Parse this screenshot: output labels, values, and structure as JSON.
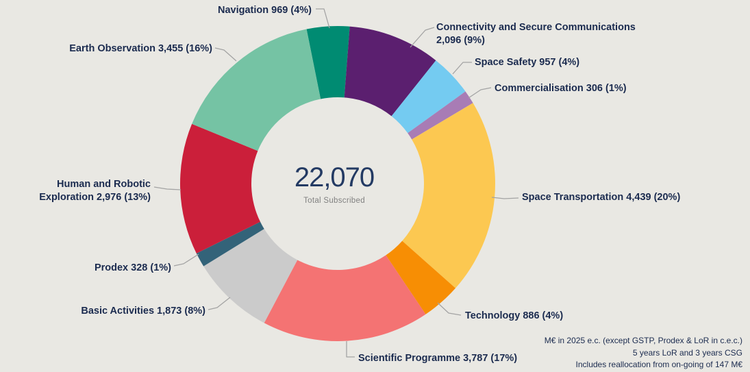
{
  "chart_data": {
    "type": "pie",
    "subtype": "donut",
    "title": "",
    "legend_position": "outside-labels",
    "start_angle_deg": -11.4,
    "total_label": "22,070",
    "center": {
      "value": "22,070",
      "caption": "Total Subscribed"
    },
    "segments": [
      {
        "name": "Navigation",
        "value": 969,
        "pct": 4,
        "color": "#008b72"
      },
      {
        "name": "Connectivity and Secure Communications",
        "value": 2096,
        "pct": 9,
        "color": "#5b1f6f"
      },
      {
        "name": "Space Safety",
        "value": 957,
        "pct": 4,
        "color": "#74cbf1"
      },
      {
        "name": "Commercialisation",
        "value": 306,
        "pct": 1,
        "color": "#a87cb5"
      },
      {
        "name": "Space Transportation",
        "value": 4439,
        "pct": 20,
        "color": "#fcc851"
      },
      {
        "name": "Technology",
        "value": 886,
        "pct": 4,
        "color": "#f78e04"
      },
      {
        "name": "Scientific Programme",
        "value": 3787,
        "pct": 17,
        "color": "#f47373"
      },
      {
        "name": "Basic Activities",
        "value": 1873,
        "pct": 8,
        "color": "#cbcbcb"
      },
      {
        "name": "Prodex",
        "value": 328,
        "pct": 1,
        "color": "#336379"
      },
      {
        "name": "Human and Robotic Exploration",
        "value": 2976,
        "pct": 13,
        "color": "#cb1f3a"
      },
      {
        "name": "Earth Observation",
        "value": 3455,
        "pct": 16,
        "color": "#75c3a4"
      }
    ]
  },
  "footnotes": [
    "M€ in 2025 e.c. (except GSTP, Prodex & LoR in c.e.c.)",
    "5 years LoR and 3 years CSG",
    "Includes reallocation from on-going of 147 M€"
  ],
  "colors": {
    "background": "#e9e8e3",
    "label_text": "#1b2b4f",
    "center_number": "#233a63",
    "muted_text": "#808080",
    "leader_line": "#a3a3a3"
  }
}
